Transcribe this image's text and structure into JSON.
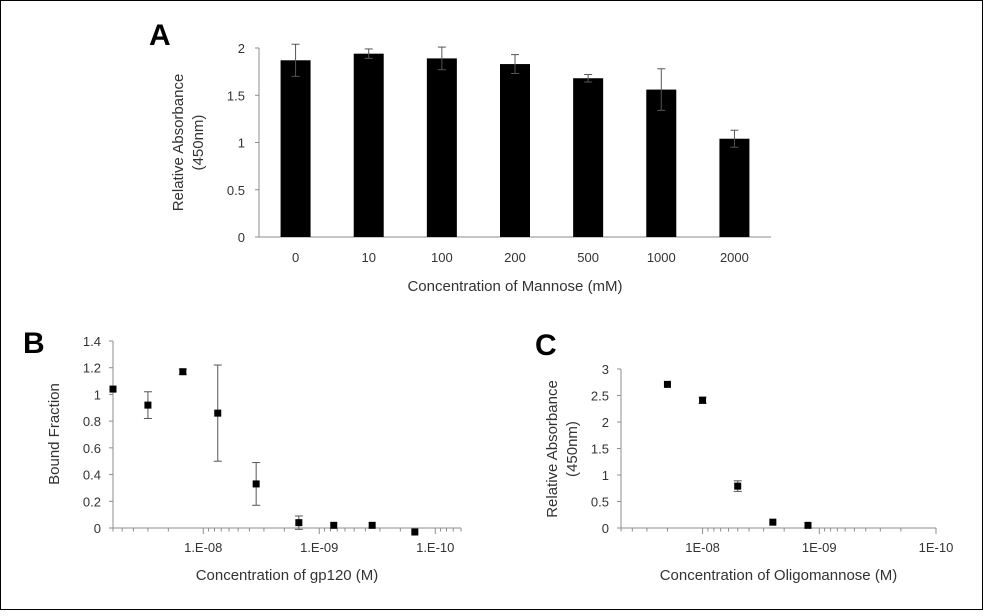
{
  "chart_data": [
    {
      "panel": "A",
      "type": "bar",
      "categories": [
        "0",
        "10",
        "100",
        "200",
        "500",
        "1000",
        "2000"
      ],
      "values": [
        1.87,
        1.94,
        1.89,
        1.83,
        1.68,
        1.56,
        1.04
      ],
      "errors": [
        0.17,
        0.05,
        0.12,
        0.1,
        0.04,
        0.22,
        0.09
      ],
      "xlabel": "Concentration of Mannose (mM)",
      "ylabel_lines": [
        "Relative Absorbance",
        "(450nm)"
      ],
      "ylim": [
        0,
        2
      ],
      "yticks": [
        "0",
        "0.5",
        "1",
        "1.5",
        "2"
      ],
      "color": "#000000"
    },
    {
      "panel": "B",
      "type": "scatter",
      "x_axis_scale": "log-reversed",
      "xlim": [
        6e-08,
        6e-11
      ],
      "x": [
        6e-08,
        3e-08,
        1.5e-08,
        7.5e-09,
        3.5e-09,
        1.5e-09,
        7.5e-10,
        3.5e-10,
        1.5e-10
      ],
      "y": [
        1.04,
        0.92,
        1.17,
        0.86,
        0.33,
        0.04,
        0.02,
        0.02,
        -0.03
      ],
      "errors": [
        0.0,
        0.1,
        0.02,
        0.36,
        0.16,
        0.05,
        0.0,
        0.0,
        0.0
      ],
      "xlabel": "Concentration of gp120 (M)",
      "ylabel": "Bound Fraction",
      "ylim": [
        0,
        1.4
      ],
      "yticks": [
        "0",
        "0.2",
        "0.4",
        "0.6",
        "0.8",
        "1",
        "1.2",
        "1.4"
      ],
      "xtick_labels": [
        {
          "value": 1e-08,
          "label": "1.E-08"
        },
        {
          "value": 1e-09,
          "label": "1.E-09"
        },
        {
          "value": 1e-10,
          "label": "1.E-10"
        }
      ]
    },
    {
      "panel": "C",
      "type": "scatter",
      "x_axis_scale": "log-reversed",
      "xlim": [
        5e-08,
        1e-10
      ],
      "x": [
        2e-08,
        1e-08,
        5e-09,
        2.5e-09,
        1.25e-09
      ],
      "y": [
        2.71,
        2.41,
        0.79,
        0.11,
        0.05
      ],
      "errors": [
        0.0,
        0.06,
        0.1,
        0.0,
        0.0
      ],
      "xlabel": "Concentration of Oligomannose (M)",
      "ylabel_lines": [
        "Relative Absorbance",
        "(450nm)"
      ],
      "ylim": [
        0,
        3
      ],
      "yticks": [
        "0",
        "0.5",
        "1",
        "1.5",
        "2",
        "2.5",
        "3"
      ],
      "xtick_labels": [
        {
          "value": 1e-08,
          "label": "1E-08"
        },
        {
          "value": 1e-09,
          "label": "1E-09"
        },
        {
          "value": 1e-10,
          "label": "1E-10"
        }
      ]
    }
  ]
}
